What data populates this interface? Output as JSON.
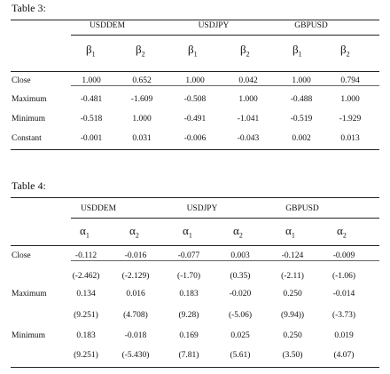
{
  "table3": {
    "title": "Table 3:",
    "groups": [
      "USDDEM",
      "USDJPY",
      "GBPUSD"
    ],
    "symbols": [
      "β",
      "β",
      "β",
      "β",
      "β",
      "β"
    ],
    "subscripts": [
      "1",
      "2",
      "1",
      "2",
      "1",
      "2"
    ],
    "rows": [
      {
        "label": "Close",
        "values": [
          "1.000",
          "0.652",
          "1.000",
          "0.042",
          "1.000",
          "0.794"
        ]
      },
      {
        "label": "Maximum",
        "values": [
          "-0.481",
          "-1.609",
          "-0.508",
          "1.000",
          "-0.488",
          "1.000"
        ]
      },
      {
        "label": "Minimum",
        "values": [
          "-0.518",
          "1.000",
          "-0.491",
          "-1.041",
          "-0.519",
          "-1.929"
        ]
      },
      {
        "label": "Constant",
        "values": [
          "-0.001",
          "0.031",
          "-0.006",
          "-0.043",
          "0.002",
          "0.013"
        ]
      }
    ]
  },
  "table4": {
    "title": "Table 4:",
    "groups": [
      "USDDEM",
      "USDJPY",
      "GBPUSD"
    ],
    "symbols": [
      "α",
      "α",
      "α",
      "α",
      "α",
      "α"
    ],
    "subscripts": [
      "1",
      "2",
      "1",
      "2",
      "1",
      "2"
    ],
    "rows": [
      {
        "label": "Close",
        "values": [
          "-0.112",
          "-0.016",
          "-0.077",
          "0.003",
          "-0.124",
          "-0.009"
        ]
      },
      {
        "label": "",
        "values": [
          "(-2.462)",
          "(-2.129)",
          "(-1.70)",
          "(0.35)",
          "(-2.11)",
          "(-1.06)"
        ]
      },
      {
        "label": "Maximum",
        "values": [
          "0.134",
          "0.016",
          "0.183",
          "-0.020",
          "0.250",
          "-0.014"
        ]
      },
      {
        "label": "",
        "values": [
          "(9.251)",
          "(4.708)",
          "(9.28)",
          "(-5.06)",
          "(9.94))",
          "(-3.73)"
        ]
      },
      {
        "label": "Minimum",
        "values": [
          "0.183",
          "-0.018",
          "0.169",
          "0.025",
          "0.250",
          "0.019"
        ]
      },
      {
        "label": "",
        "values": [
          "(9.251)",
          "(-5.430)",
          "(7.81)",
          "(5.61)",
          "(3.50)",
          "(4.07)"
        ]
      }
    ]
  }
}
